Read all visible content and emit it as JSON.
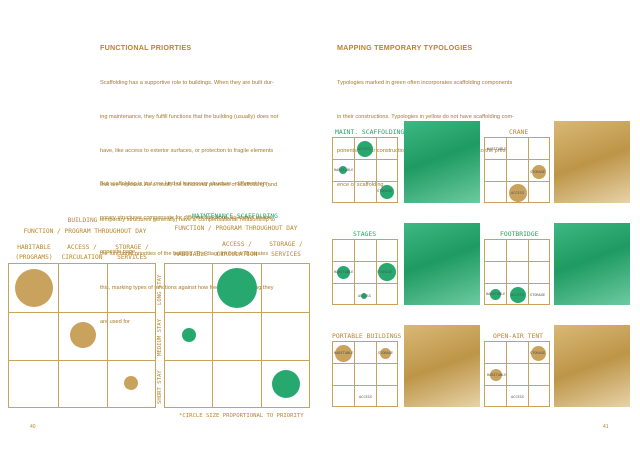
{
  "left_page": {
    "heading": "FUNCTIONAL PRIORTIES",
    "paragraph1_lines": [
      "Scaffolding has a supportive role to buildings. When they are built dur-",
      "ing maintenance, they fulfill functions that the building (usually) does not",
      "have, like access to exterior surfaces, or protection to fragile elements",
      "that are exposed. As a result, the functional priorities of scaffolding (and",
      "temporary structures generally) have a 'compensational' relationship to",
      "the functional priorities of the building. The diagram below illustrates",
      "this, marking types of functions against how frequently / how long they",
      "are used for"
    ],
    "paragraph2_lines": [
      "But scaffolding is just one kind of temporary structure - different tem-",
      "porary structures compensate for different functions, as shown on the",
      "opposite page."
    ],
    "page_number": "40"
  },
  "building_diagram": {
    "title": "BUILDING",
    "subtitle": "FUNCTION / PROGRAM THROUGHOUT DAY",
    "columns": [
      "HABITABLE\n(PROGRAMS)",
      "ACCESS /\nCIRCULATION",
      "STORAGE /\nSERVICES"
    ]
  },
  "scaffolding_diagram": {
    "title": "MAINTENANCE SCAFFOLDING",
    "subtitle": "FUNCTION / PROGRAM THROUGHOUT DAY",
    "columns": [
      "HABITABLE",
      "ACCESS /\nCIRCULATION",
      "STORAGE /\nSERVICES"
    ],
    "rows": [
      "LONG STAY",
      "MEDIUM STAY",
      "SHORT STAY"
    ],
    "footnote": "*CIRCLE SIZE PROPORTIONAL TO PRIORITY"
  },
  "right_page": {
    "heading": "MAPPING TEMPORARY TYPOLOGIES",
    "paragraph_lines": [
      "Typologies marked in green often incorporates scaffolding components",
      "in their constructions. Typologies in yellow do not have scaffolding com-",
      "ponents in their construction, but may be complementary to the pres-",
      "ence of scaffolding."
    ],
    "page_number": "41",
    "typologies": [
      {
        "name": "MAINT. SCAFFOLDING",
        "color": "green",
        "labels": [
          "ACCESS",
          "HABITABLE",
          "STORAGE"
        ]
      },
      {
        "name": "CRANE",
        "color": "gold",
        "labels": [
          "HABITABLE",
          "STORAGE",
          "ACCESS"
        ]
      },
      {
        "name": "STAGES",
        "color": "green",
        "labels": [
          "HABITABLE",
          "STORAGE",
          "ACCESS"
        ]
      },
      {
        "name": "FOOTBRIDGE",
        "color": "green",
        "labels": [
          "HABITABLE",
          "ACCESS",
          "STORAGE"
        ]
      },
      {
        "name": "PORTABLE BUILDINGS",
        "color": "gold",
        "labels": [
          "HABITABLE",
          "STORAGE",
          "ACCESS"
        ]
      },
      {
        "name": "OPEN-AIR TENT",
        "color": "gold",
        "labels": [
          "STORAGE",
          "HABITABLE",
          "ACCESS"
        ]
      }
    ]
  },
  "colors": {
    "gold": "#c9a25d",
    "gold_text": "#b8862b",
    "green": "#27a86e"
  }
}
